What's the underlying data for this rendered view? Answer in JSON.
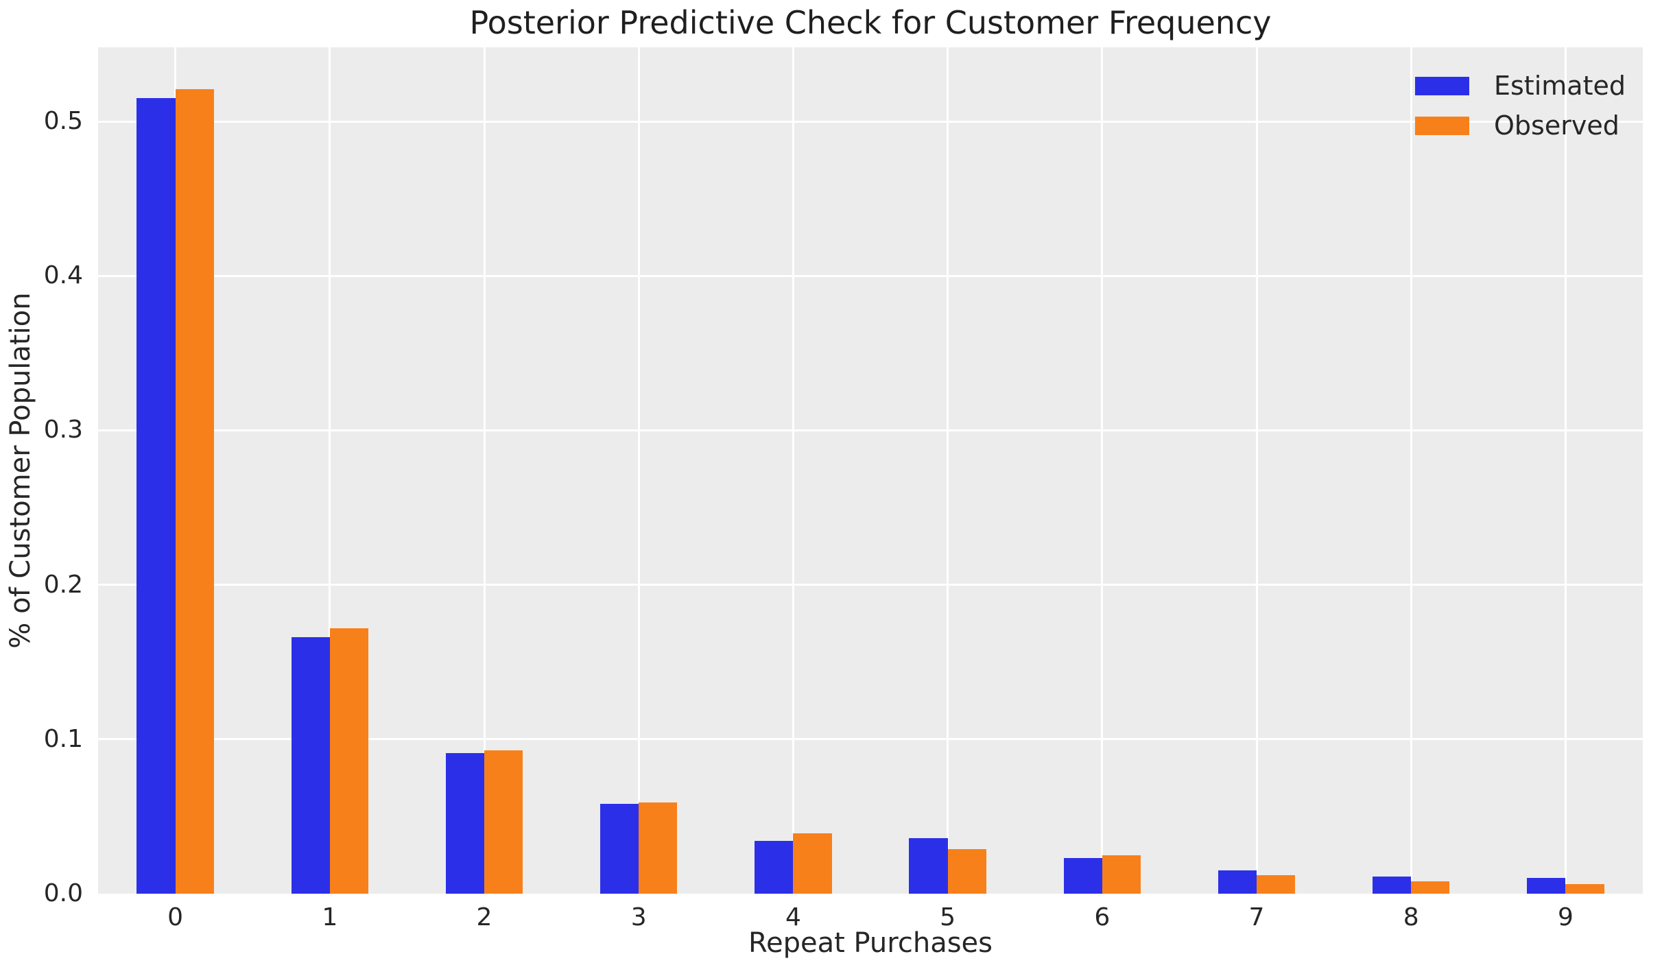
{
  "chart_data": {
    "type": "bar",
    "title": "Posterior Predictive Check for Customer Frequency",
    "xlabel": "Repeat Purchases",
    "ylabel": "% of Customer Population",
    "categories": [
      "0",
      "1",
      "2",
      "3",
      "4",
      "5",
      "6",
      "7",
      "8",
      "9"
    ],
    "series": [
      {
        "name": "Estimated",
        "color": "#2b30e8",
        "values": [
          0.515,
          0.166,
          0.091,
          0.058,
          0.034,
          0.036,
          0.023,
          0.015,
          0.011,
          0.01
        ]
      },
      {
        "name": "Observed",
        "color": "#f8801a",
        "values": [
          0.521,
          0.172,
          0.093,
          0.059,
          0.039,
          0.029,
          0.025,
          0.012,
          0.008,
          0.006
        ]
      }
    ],
    "ylim": [
      0,
      0.548
    ],
    "yticks": [
      0.0,
      0.1,
      0.2,
      0.3,
      0.4,
      0.5
    ],
    "ytick_labels": [
      "0.0",
      "0.1",
      "0.2",
      "0.3",
      "0.4",
      "0.5"
    ],
    "grid": true,
    "legend_position": "upper right",
    "plot_bg_color": "#ececec",
    "grid_color": "#ffffff",
    "figure_bg_color": "#ffffff",
    "text_color": "#262626"
  }
}
